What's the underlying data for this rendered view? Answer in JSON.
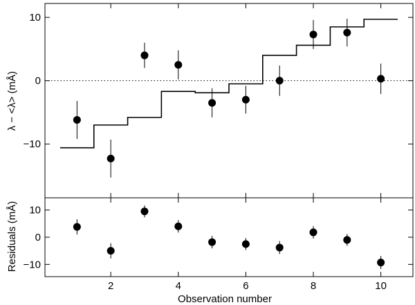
{
  "chart_data": [
    {
      "type": "scatter",
      "panel": "top",
      "xlabel": "",
      "ylabel": "λ − <λ> (mÅ)",
      "xlim": [
        0.05,
        10.95
      ],
      "ylim": [
        -18.5,
        12.2
      ],
      "xticks": [
        2,
        4,
        6,
        8,
        10
      ],
      "xtick_labels": [
        "",
        "",
        "",
        "",
        ""
      ],
      "yticks": [
        -10,
        0,
        10
      ],
      "ytick_labels": [
        "−10",
        "0",
        "10"
      ],
      "reference_line": {
        "y": 0,
        "style": "dotted"
      },
      "points": [
        {
          "x": 1,
          "y": -6.2,
          "err": 3.0
        },
        {
          "x": 2,
          "y": -12.3,
          "err": 3.0
        },
        {
          "x": 3,
          "y": 4.0,
          "err": 2.0
        },
        {
          "x": 4,
          "y": 2.5,
          "err": 2.3
        },
        {
          "x": 5,
          "y": -3.5,
          "err": 2.3
        },
        {
          "x": 6,
          "y": -3.0,
          "err": 2.2
        },
        {
          "x": 7,
          "y": 0.0,
          "err": 2.4
        },
        {
          "x": 8,
          "y": 7.3,
          "err": 2.3
        },
        {
          "x": 9,
          "y": 7.6,
          "err": 2.2
        },
        {
          "x": 10,
          "y": 0.3,
          "err": 2.4
        }
      ],
      "step_model": {
        "levels": [
          {
            "x0": 0.5,
            "x1": 1.5,
            "y": -10.6
          },
          {
            "x0": 1.5,
            "x1": 2.5,
            "y": -7.0
          },
          {
            "x0": 2.5,
            "x1": 3.5,
            "y": -5.8
          },
          {
            "x0": 3.5,
            "x1": 4.5,
            "y": -1.7
          },
          {
            "x0": 4.5,
            "x1": 5.5,
            "y": -1.9
          },
          {
            "x0": 5.5,
            "x1": 6.5,
            "y": -0.5
          },
          {
            "x0": 6.5,
            "x1": 7.5,
            "y": 4.0
          },
          {
            "x0": 7.5,
            "x1": 8.5,
            "y": 5.6
          },
          {
            "x0": 8.5,
            "x1": 9.5,
            "y": 8.5
          },
          {
            "x0": 9.5,
            "x1": 10.5,
            "y": 9.7
          }
        ]
      }
    },
    {
      "type": "scatter",
      "panel": "bottom",
      "xlabel": "Observation number",
      "ylabel": "Residuals (mÅ)",
      "xlim": [
        0.05,
        10.95
      ],
      "ylim": [
        -14.5,
        14.5
      ],
      "xticks": [
        2,
        4,
        6,
        8,
        10
      ],
      "xtick_labels": [
        "2",
        "4",
        "6",
        "8",
        "10"
      ],
      "yticks": [
        -10,
        0,
        10
      ],
      "ytick_labels": [
        "−10",
        "0",
        "10"
      ],
      "points": [
        {
          "x": 1,
          "y": 3.8,
          "err": 2.8
        },
        {
          "x": 2,
          "y": -5.0,
          "err": 2.8
        },
        {
          "x": 3,
          "y": 9.5,
          "err": 2.2
        },
        {
          "x": 4,
          "y": 4.0,
          "err": 2.3
        },
        {
          "x": 5,
          "y": -1.8,
          "err": 2.3
        },
        {
          "x": 6,
          "y": -2.5,
          "err": 2.2
        },
        {
          "x": 7,
          "y": -3.8,
          "err": 2.4
        },
        {
          "x": 8,
          "y": 1.8,
          "err": 2.3
        },
        {
          "x": 9,
          "y": -1.0,
          "err": 2.2
        },
        {
          "x": 10,
          "y": -9.3,
          "err": 2.4
        }
      ]
    }
  ]
}
